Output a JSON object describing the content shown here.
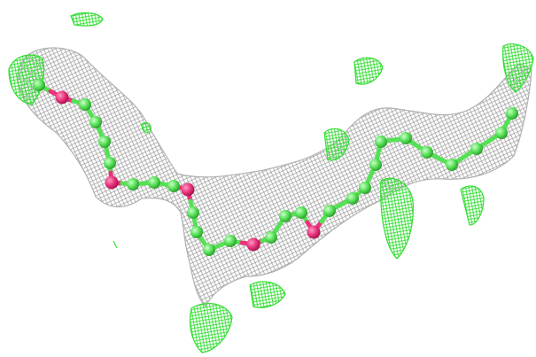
{
  "colors": {
    "background": "#ffffff",
    "density_mesh_gray": "#9a9a9a",
    "difference_mesh_green": "#33dd33",
    "carbon_atom_green": "#66ee66",
    "oxygen_atom_pink": "#e8337a"
  },
  "scene": {
    "description_visible_text": "",
    "chain_atoms": [
      {
        "element": "C"
      },
      {
        "element": "O"
      },
      {
        "element": "C"
      },
      {
        "element": "C"
      },
      {
        "element": "C"
      },
      {
        "element": "C"
      },
      {
        "element": "O"
      },
      {
        "element": "C"
      },
      {
        "element": "C"
      },
      {
        "element": "C"
      },
      {
        "element": "O"
      },
      {
        "element": "C"
      },
      {
        "element": "C"
      },
      {
        "element": "C"
      },
      {
        "element": "C"
      },
      {
        "element": "O"
      },
      {
        "element": "C"
      },
      {
        "element": "C"
      },
      {
        "element": "C"
      },
      {
        "element": "O"
      },
      {
        "element": "C"
      },
      {
        "element": "C"
      },
      {
        "element": "C"
      },
      {
        "element": "C"
      },
      {
        "element": "C"
      },
      {
        "element": "C"
      },
      {
        "element": "C"
      },
      {
        "element": "C"
      },
      {
        "element": "C"
      },
      {
        "element": "C"
      },
      {
        "element": "C"
      }
    ]
  }
}
